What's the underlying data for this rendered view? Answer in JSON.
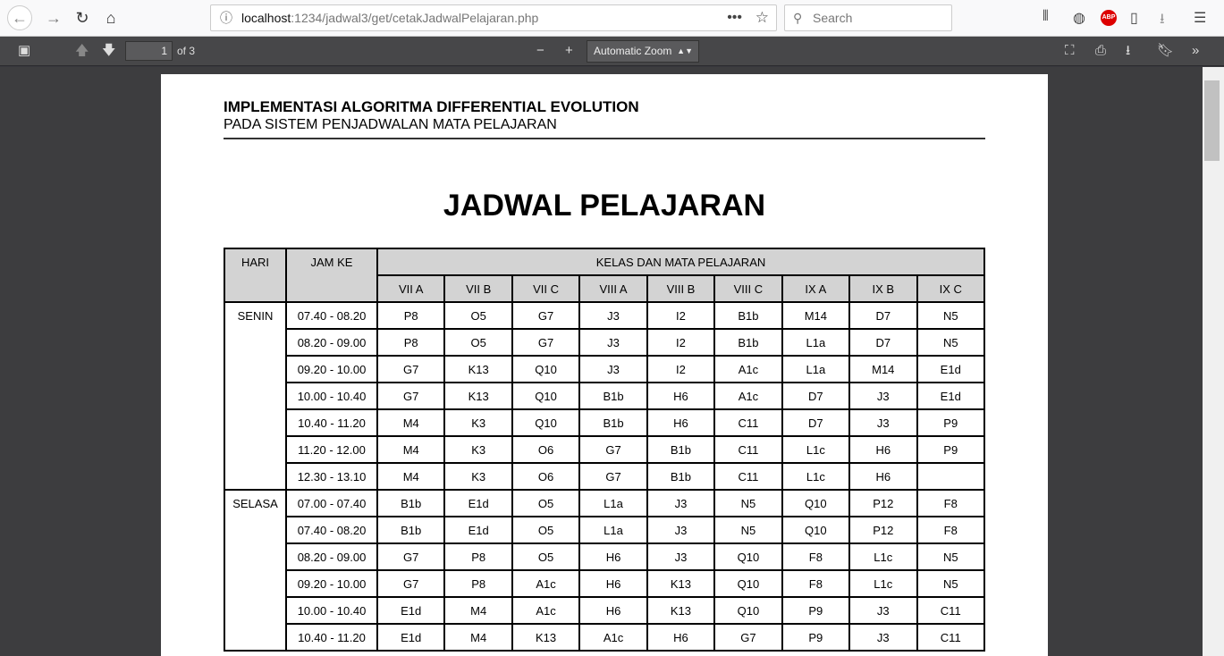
{
  "browser": {
    "url_host": "localhost",
    "url_rest": ":1234/jadwal3/get/cetakJadwalPelajaran.php",
    "search_placeholder": "Search",
    "abp": "ABP"
  },
  "pdf_toolbar": {
    "page": "1",
    "of": "of 3",
    "zoom": "Automatic Zoom"
  },
  "document": {
    "header_line1": "IMPLEMENTASI ALGORITMA DIFFERENTIAL EVOLUTION",
    "header_line2": "PADA SISTEM PENJADWALAN MATA PELAJARAN",
    "title": "JADWAL PELAJARAN",
    "table": {
      "col_hari": "HARI",
      "col_jam": "JAM KE",
      "col_group": "KELAS DAN MATA PELAJARAN",
      "classes": [
        "VII A",
        "VII B",
        "VII C",
        "VIII A",
        "VIII B",
        "VIII C",
        "IX A",
        "IX B",
        "IX C"
      ],
      "days": [
        {
          "day": "SENIN",
          "rows": [
            {
              "jam": "07.40 - 08.20",
              "cells": [
                "P8",
                "O5",
                "G7",
                "J3",
                "I2",
                "B1b",
                "M14",
                "D7",
                "N5"
              ]
            },
            {
              "jam": "08.20 - 09.00",
              "cells": [
                "P8",
                "O5",
                "G7",
                "J3",
                "I2",
                "B1b",
                "L1a",
                "D7",
                "N5"
              ]
            },
            {
              "jam": "09.20 - 10.00",
              "cells": [
                "G7",
                "K13",
                "Q10",
                "J3",
                "I2",
                "A1c",
                "L1a",
                "M14",
                "E1d"
              ]
            },
            {
              "jam": "10.00 - 10.40",
              "cells": [
                "G7",
                "K13",
                "Q10",
                "B1b",
                "H6",
                "A1c",
                "D7",
                "J3",
                "E1d"
              ]
            },
            {
              "jam": "10.40 - 11.20",
              "cells": [
                "M4",
                "K3",
                "Q10",
                "B1b",
                "H6",
                "C11",
                "D7",
                "J3",
                "P9"
              ]
            },
            {
              "jam": "11.20 - 12.00",
              "cells": [
                "M4",
                "K3",
                "O6",
                "G7",
                "B1b",
                "C11",
                "L1c",
                "H6",
                "P9"
              ]
            },
            {
              "jam": "12.30 - 13.10",
              "cells": [
                "M4",
                "K3",
                "O6",
                "G7",
                "B1b",
                "C11",
                "L1c",
                "H6",
                ""
              ]
            }
          ]
        },
        {
          "day": "SELASA",
          "rows": [
            {
              "jam": "07.00 - 07.40",
              "cells": [
                "B1b",
                "E1d",
                "O5",
                "L1a",
                "J3",
                "N5",
                "Q10",
                "P12",
                "F8"
              ]
            },
            {
              "jam": "07.40 - 08.20",
              "cells": [
                "B1b",
                "E1d",
                "O5",
                "L1a",
                "J3",
                "N5",
                "Q10",
                "P12",
                "F8"
              ]
            },
            {
              "jam": "08.20 - 09.00",
              "cells": [
                "G7",
                "P8",
                "O5",
                "H6",
                "J3",
                "Q10",
                "F8",
                "L1c",
                "N5"
              ]
            },
            {
              "jam": "09.20 - 10.00",
              "cells": [
                "G7",
                "P8",
                "A1c",
                "H6",
                "K13",
                "Q10",
                "F8",
                "L1c",
                "N5"
              ]
            },
            {
              "jam": "10.00 - 10.40",
              "cells": [
                "E1d",
                "M4",
                "A1c",
                "H6",
                "K13",
                "Q10",
                "P9",
                "J3",
                "C11"
              ]
            },
            {
              "jam": "10.40 - 11.20",
              "cells": [
                "E1d",
                "M4",
                "K13",
                "A1c",
                "H6",
                "G7",
                "P9",
                "J3",
                "C11"
              ]
            }
          ]
        }
      ]
    }
  }
}
